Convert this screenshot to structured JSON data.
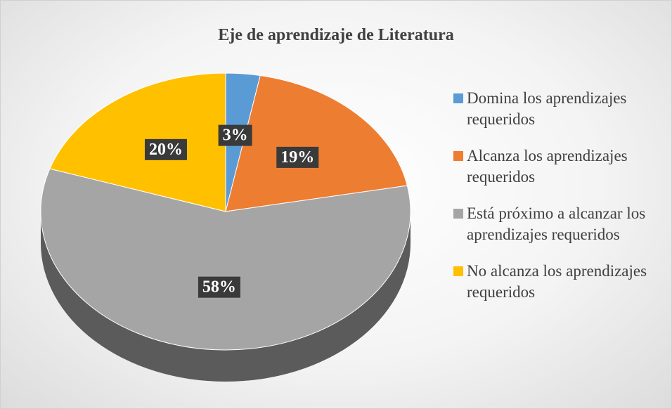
{
  "chart_data": {
    "type": "pie",
    "title": "Eje de aprendizaje de Literatura",
    "categories": [
      "Domina los aprendizajes requeridos",
      "Alcanza los aprendizajes requeridos",
      "Está próximo a alcanzar los aprendizajes requeridos",
      "No alcanza los aprendizajes requeridos"
    ],
    "values": [
      3,
      19,
      58,
      20
    ],
    "value_labels": [
      "3%",
      "19%",
      "58%",
      "20%"
    ],
    "colors": [
      "#5b9bd5",
      "#ed7d31",
      "#a5a5a5",
      "#ffc000"
    ],
    "legend": "right"
  }
}
